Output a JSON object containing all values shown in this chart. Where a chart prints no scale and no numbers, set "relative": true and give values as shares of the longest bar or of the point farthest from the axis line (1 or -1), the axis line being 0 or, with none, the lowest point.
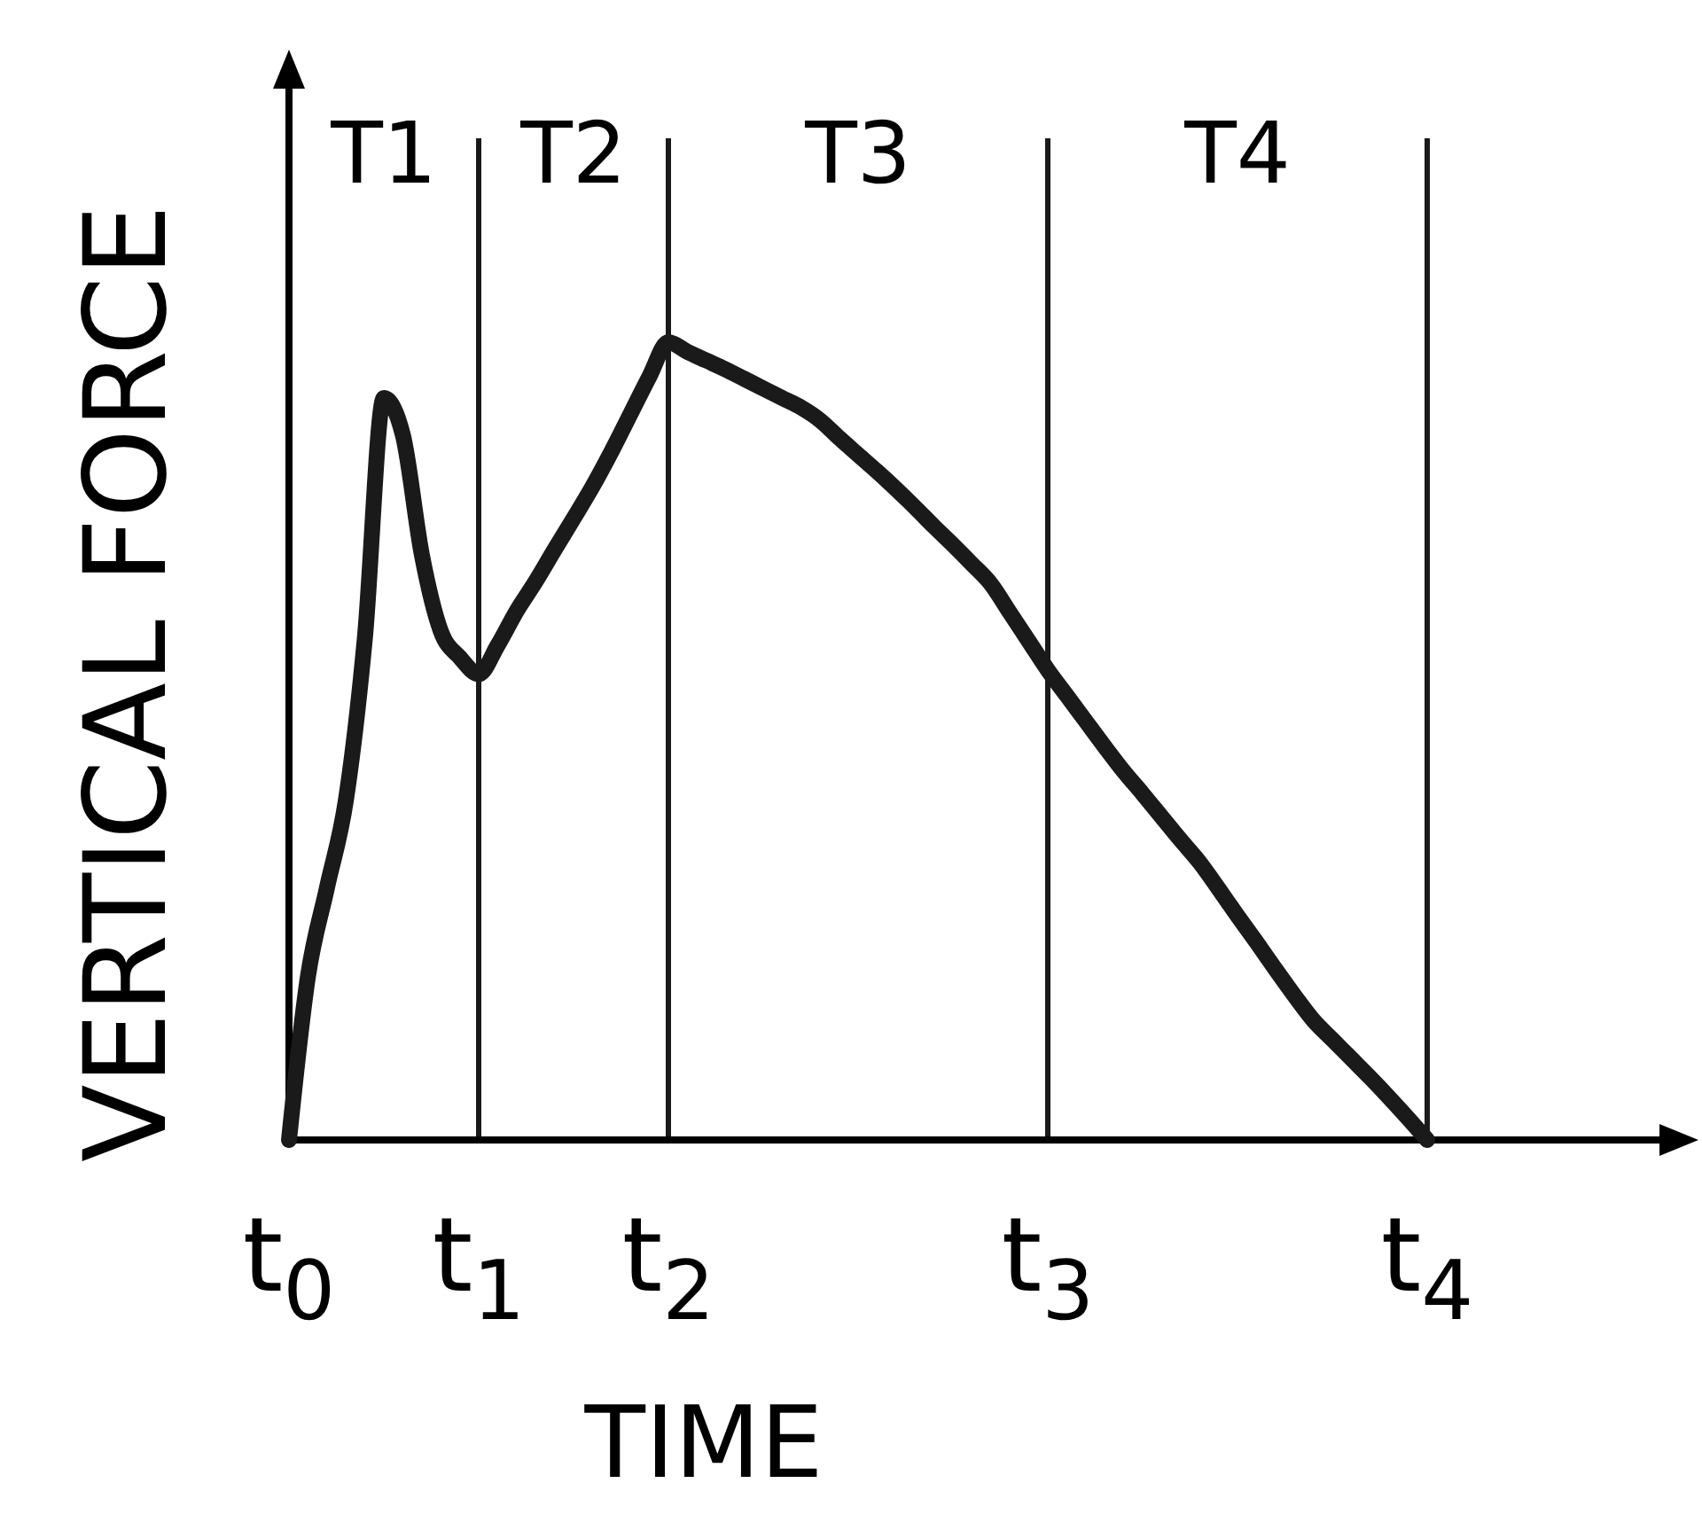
{
  "chart_data": {
    "type": "line",
    "relative": true,
    "xlabel": "TIME",
    "ylabel": "VERTICAL FORCE",
    "categories": [
      "t$_{0}$",
      null,
      null,
      null,
      null,
      null,
      null,
      null,
      null,
      null,
      "t$_{1}$",
      null,
      null,
      null,
      null,
      null,
      null,
      null,
      null,
      null,
      "t$_{2}$",
      null,
      null,
      null,
      null,
      null,
      null,
      null,
      null,
      null,
      null,
      null,
      null,
      null,
      null,
      null,
      null,
      null,
      null,
      null,
      "t$_{3}$",
      null,
      null,
      null,
      null,
      null,
      null,
      null,
      null,
      null,
      null,
      null,
      null,
      null,
      null,
      null,
      null,
      null,
      null,
      null,
      "t$_{4}$",
      null,
      null,
      null,
      null,
      null,
      null,
      null,
      null,
      null,
      null,
      null,
      null,
      null,
      null
    ],
    "series": [
      {
        "color": "#1a1a1a",
        "values": [
          0,
          0.205,
          0.316,
          0.426,
          0.629,
          0.93,
          0.884,
          0.734,
          0.638,
          0.605,
          0.584,
          0.62,
          0.663,
          0.7,
          0.74,
          0.779,
          0.819,
          0.863,
          0.91,
          0.957,
          1,
          0.988,
          0.977,
          0.966,
          0.954,
          0.942,
          0.93,
          0.918,
          0.902,
          0.88,
          0.859,
          0.838,
          0.816,
          0.793,
          0.769,
          0.746,
          0.722,
          0.697,
          0.661,
          0.625,
          0.589,
          0.557,
          0.525,
          0.493,
          0.462,
          0.434,
          0.405,
          0.376,
          0.348,
          0.315,
          0.281,
          0.248,
          0.214,
          0.181,
          0.15,
          0.126,
          0.102,
          0.078,
          0.053,
          0.027,
          0,
          null,
          null,
          null,
          null,
          null,
          null,
          null,
          null,
          null,
          null,
          null,
          null,
          null,
          null
        ]
      }
    ],
    "ref_lines": [
      {
        "axis": "x",
        "value": "t$_{1}$",
        "color": "#1a1a1a"
      },
      {
        "axis": "x",
        "value": "t$_{2}$",
        "color": "#1a1a1a"
      },
      {
        "axis": "x",
        "value": "t$_{3}$",
        "color": "#1a1a1a"
      },
      {
        "axis": "x",
        "value": "t$_{4}$",
        "color": "#1a1a1a"
      }
    ],
    "annotations": [
      "T1",
      "T2",
      "T3",
      "T4"
    ],
    "grid": false,
    "marker": "none",
    "line_style": "solid"
  }
}
